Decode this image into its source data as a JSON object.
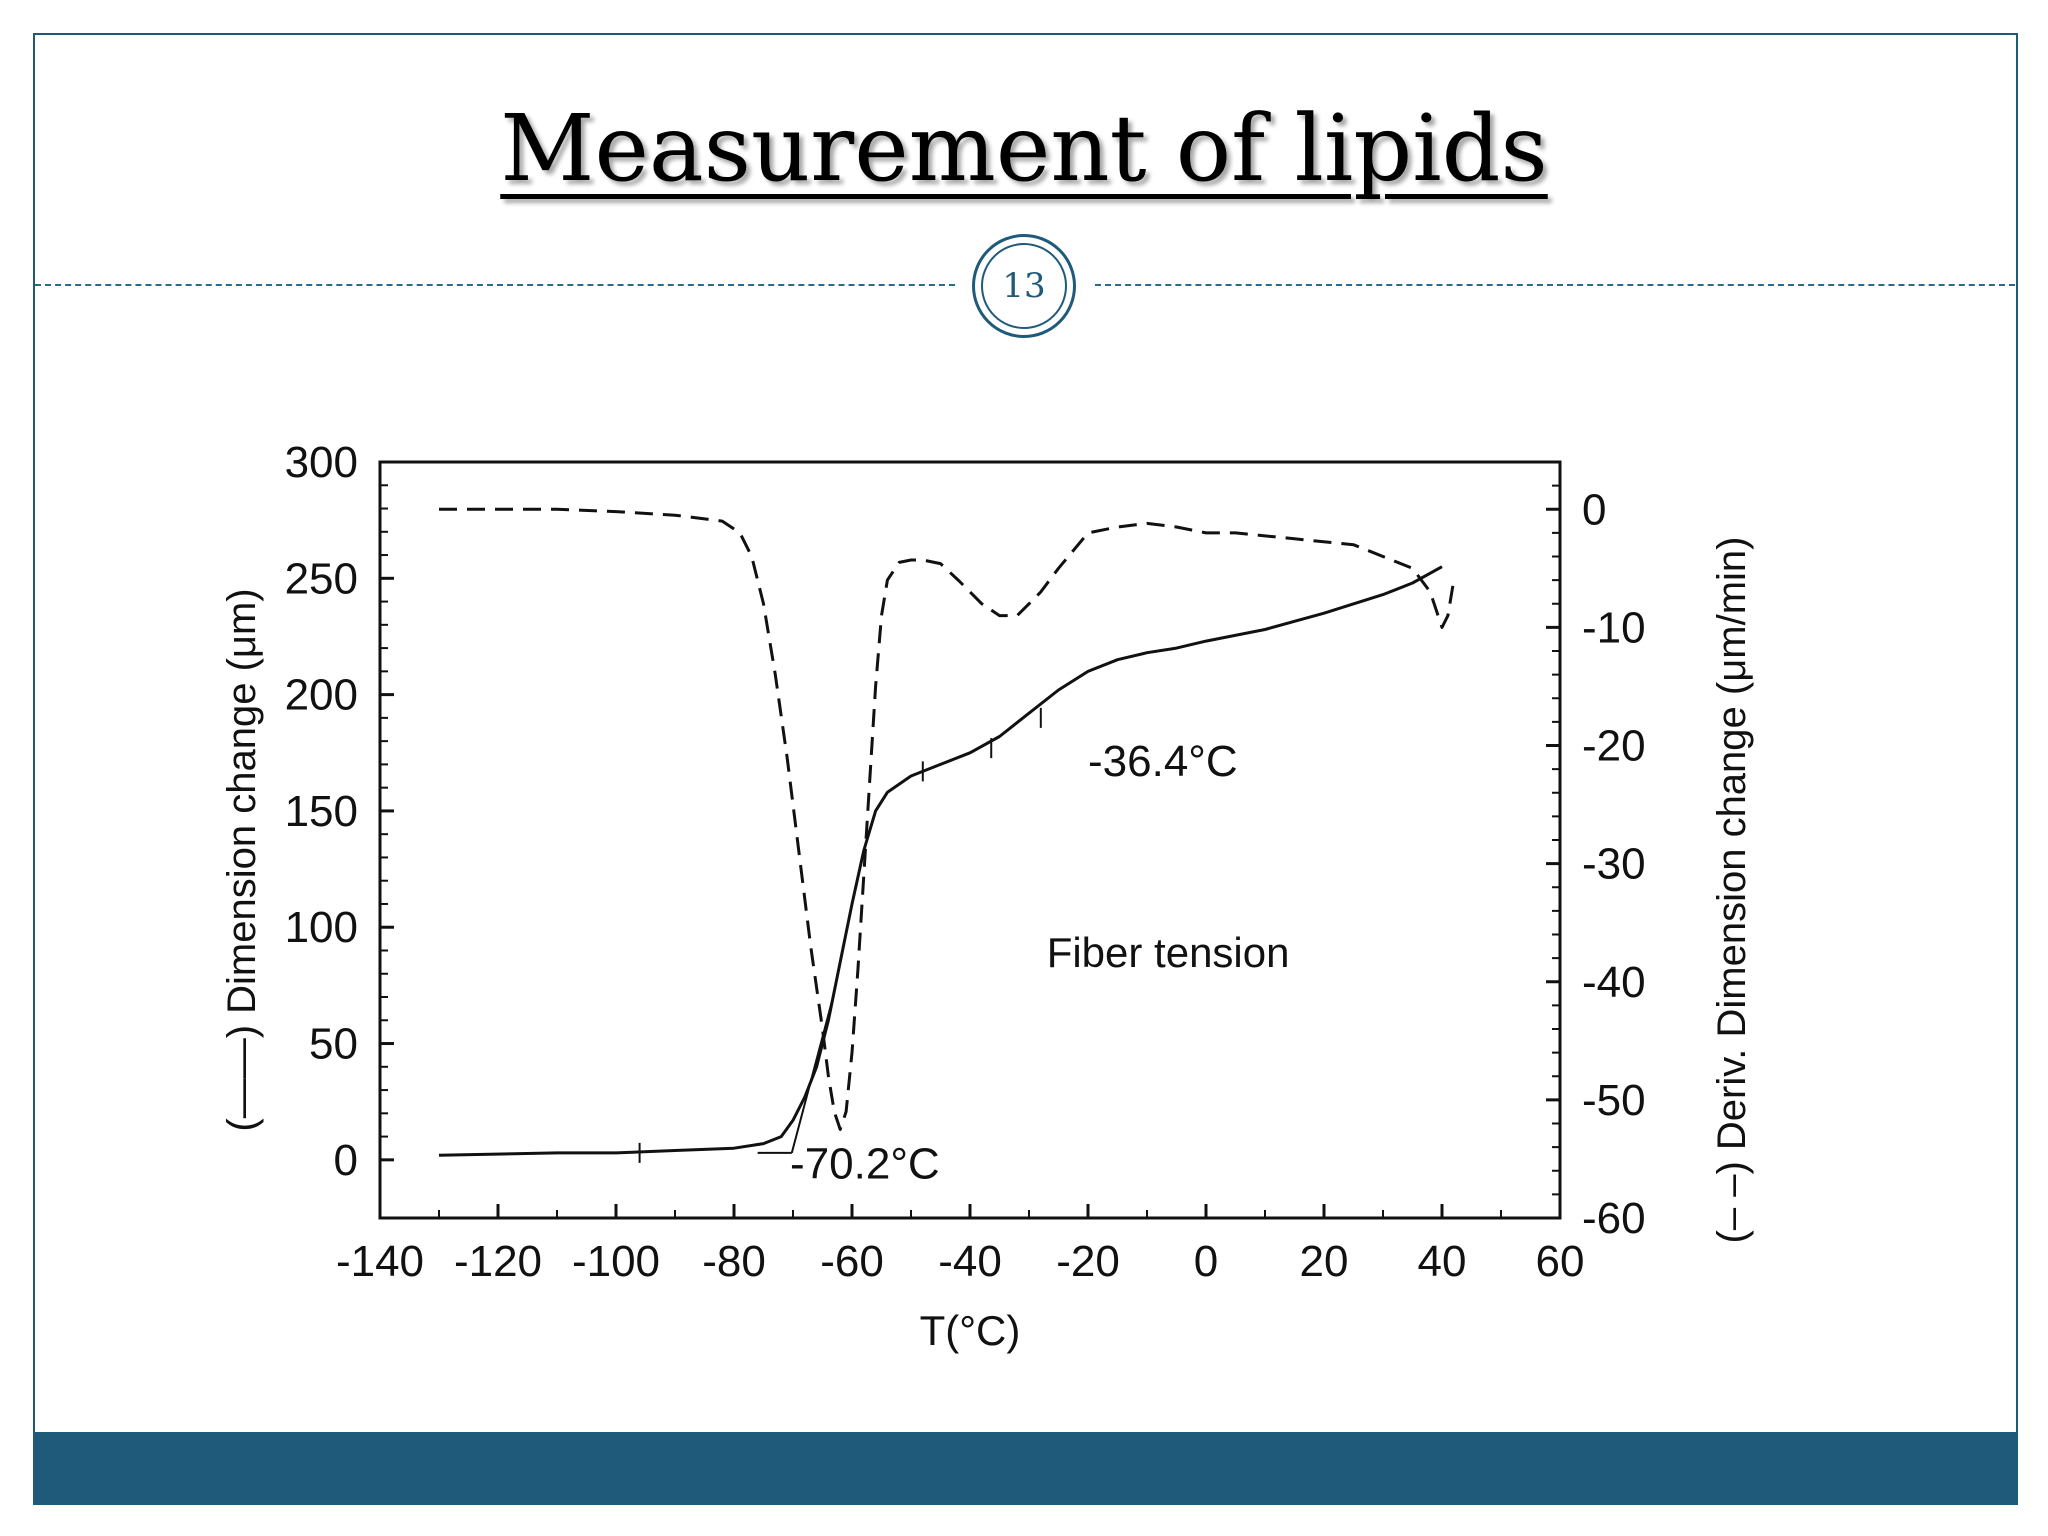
{
  "slide": {
    "title": "Measurement of lipids",
    "page_number": "13",
    "colors": {
      "accent": "#1f5a7a",
      "footer": "#1f5a7a"
    }
  },
  "chart_data": {
    "type": "line",
    "xlabel": "T(°C)",
    "ylabel_left": "(——) Dimension change (μm)",
    "ylabel_right": "(– –) Deriv. Dimension change (μm/min)",
    "xlim": [
      -140,
      60
    ],
    "ylim_left": [
      -25,
      300
    ],
    "ylim_right": [
      -60,
      4
    ],
    "x_ticks": [
      -140,
      -120,
      -100,
      -80,
      -60,
      -40,
      -20,
      0,
      20,
      40,
      60
    ],
    "y_ticks_left": [
      0,
      50,
      100,
      150,
      200,
      250,
      300
    ],
    "y_ticks_right": [
      0,
      -10,
      -20,
      -30,
      -40,
      -50,
      -60
    ],
    "series": [
      {
        "axis": "left",
        "style": "solid",
        "x": [
          -130,
          -110,
          -100,
          -90,
          -80,
          -75,
          -72,
          -70,
          -68,
          -66,
          -64,
          -62,
          -60,
          -58,
          -56,
          -54,
          -50,
          -45,
          -40,
          -35,
          -30,
          -25,
          -20,
          -15,
          -10,
          -5,
          0,
          10,
          20,
          30,
          35,
          40
        ],
        "y": [
          2,
          3,
          3,
          4,
          5,
          7,
          10,
          17,
          27,
          40,
          60,
          85,
          110,
          133,
          150,
          158,
          165,
          170,
          175,
          182,
          192,
          202,
          210,
          215,
          218,
          220,
          223,
          228,
          235,
          243,
          248,
          255
        ]
      },
      {
        "axis": "right",
        "style": "dashed",
        "x": [
          -130,
          -125,
          -120,
          -110,
          -100,
          -90,
          -82,
          -79,
          -77,
          -75,
          -73,
          -71,
          -69,
          -67,
          -65,
          -64,
          -63,
          -62,
          -61,
          -60,
          -59,
          -58,
          -57,
          -56,
          -55,
          -54,
          -52,
          -50,
          -48,
          -45,
          -42,
          -38,
          -35,
          -32,
          -30,
          -28,
          -25,
          -20,
          -15,
          -10,
          -5,
          0,
          5,
          15,
          25,
          30,
          35,
          38,
          40,
          41,
          42
        ],
        "y": [
          0,
          0,
          0,
          0,
          -0.2,
          -0.5,
          -1,
          -2,
          -4,
          -8,
          -14,
          -21,
          -29,
          -37,
          -44,
          -48,
          -51,
          -52.5,
          -51,
          -46,
          -39,
          -31,
          -23,
          -15,
          -9,
          -6,
          -4.5,
          -4.3,
          -4.3,
          -4.6,
          -6,
          -8,
          -9,
          -9,
          -8,
          -7,
          -5,
          -2,
          -1.5,
          -1.2,
          -1.5,
          -2,
          -2,
          -2.5,
          -3,
          -4,
          -5,
          -7,
          -10,
          -9,
          -6
        ]
      }
    ],
    "annotations": [
      {
        "text": "-36.4°C"
      },
      {
        "text": "-70.2°C"
      },
      {
        "text": "Fiber tension"
      }
    ]
  }
}
